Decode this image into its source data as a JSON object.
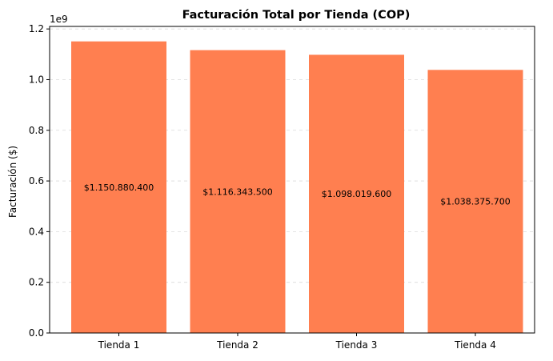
{
  "chart_data": {
    "type": "bar",
    "title": "Facturación Total por Tienda (COP)",
    "ylabel": "Facturación ($)",
    "xlabel": "",
    "categories": [
      "Tienda 1",
      "Tienda 2",
      "Tienda 3",
      "Tienda 4"
    ],
    "values": [
      1150880400,
      1116343500,
      1098019600,
      1038375700
    ],
    "data_labels": [
      "$1.150.880.400",
      "$1.116.343.500",
      "$1.098.019.600",
      "$1.038.375.700"
    ],
    "ylim": [
      0,
      1210000000.0
    ],
    "yticks": [
      0,
      200000000.0,
      400000000.0,
      600000000.0,
      800000000.0,
      1000000000.0,
      1200000000.0
    ],
    "ytick_labels": [
      "0.0",
      "0.2",
      "0.4",
      "0.6",
      "0.8",
      "1.0",
      "1.2"
    ],
    "y_offset_label": "1e9",
    "bar_color": "#ff7f50",
    "grid": "y-axis dashed",
    "legend": "none"
  }
}
